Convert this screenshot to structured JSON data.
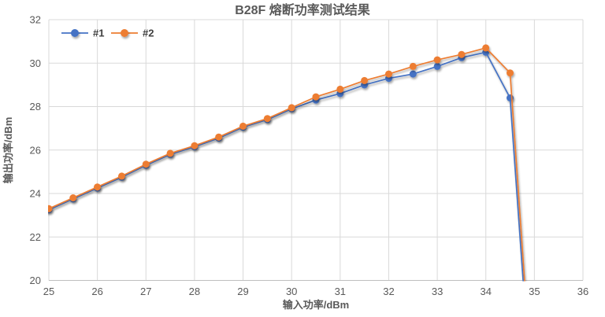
{
  "colors": {
    "series1": "#4472C4",
    "series2": "#ED7D31",
    "gridline": "#D9D9D9",
    "axis_line": "#BFBFBF",
    "text": "#595959",
    "legend_text": "#404040",
    "background": "#FFFFFF"
  },
  "chart_data": {
    "type": "line",
    "title": "B28F 熔断功率测试结果",
    "xlabel": "输入功率/dBm",
    "ylabel": "输出功率/dBm",
    "xlim": [
      25,
      36
    ],
    "ylim": [
      20,
      32
    ],
    "xticks": [
      25,
      26,
      27,
      28,
      29,
      30,
      31,
      32,
      33,
      34,
      35,
      36
    ],
    "yticks": [
      20,
      22,
      24,
      26,
      28,
      30,
      32
    ],
    "grid": true,
    "legend_position": "top-left-inside",
    "x": [
      25,
      25.5,
      26,
      26.5,
      27,
      27.5,
      28,
      28.5,
      29,
      29.5,
      30,
      30.5,
      31,
      31.5,
      32,
      32.5,
      33,
      33.5,
      34,
      34.5
    ],
    "series": [
      {
        "name": "#1",
        "color": "#4472C4",
        "marker": "circle",
        "values": [
          23.25,
          23.75,
          24.25,
          24.75,
          25.3,
          25.8,
          26.15,
          26.55,
          27.05,
          27.4,
          27.9,
          28.3,
          28.6,
          29.0,
          29.3,
          29.5,
          29.85,
          30.25,
          30.5,
          28.4
        ],
        "line_falls_below_axis_at_x": 34.77
      },
      {
        "name": "#2",
        "color": "#ED7D31",
        "marker": "circle",
        "values": [
          23.3,
          23.8,
          24.3,
          24.8,
          25.35,
          25.85,
          26.2,
          26.6,
          27.1,
          27.45,
          27.95,
          28.45,
          28.8,
          29.2,
          29.5,
          29.85,
          30.15,
          30.4,
          30.7,
          29.55
        ],
        "line_falls_below_axis_at_x": 34.8
      }
    ]
  }
}
